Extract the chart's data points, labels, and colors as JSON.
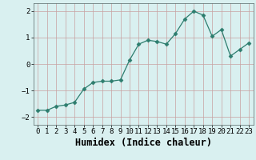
{
  "x": [
    0,
    1,
    2,
    3,
    4,
    5,
    6,
    7,
    8,
    9,
    10,
    11,
    12,
    13,
    14,
    15,
    16,
    17,
    18,
    19,
    20,
    21,
    22,
    23
  ],
  "y": [
    -1.75,
    -1.75,
    -1.6,
    -1.55,
    -1.45,
    -0.95,
    -0.7,
    -0.65,
    -0.65,
    -0.6,
    0.15,
    0.75,
    0.9,
    0.85,
    0.75,
    1.15,
    1.7,
    2.0,
    1.85,
    1.05,
    1.3,
    0.3,
    0.55,
    0.8
  ],
  "xlabel": "Humidex (Indice chaleur)",
  "xlim": [
    -0.5,
    23.5
  ],
  "ylim": [
    -2.3,
    2.3
  ],
  "yticks": [
    -2,
    -1,
    0,
    1,
    2
  ],
  "xticks": [
    0,
    1,
    2,
    3,
    4,
    5,
    6,
    7,
    8,
    9,
    10,
    11,
    12,
    13,
    14,
    15,
    16,
    17,
    18,
    19,
    20,
    21,
    22,
    23
  ],
  "line_color": "#2d7d6e",
  "marker": "D",
  "marker_size": 2.5,
  "bg_color": "#d9f0f0",
  "grid_color": "#c8a0a0",
  "tick_labelsize": 6.5,
  "xlabel_fontsize": 8.5
}
